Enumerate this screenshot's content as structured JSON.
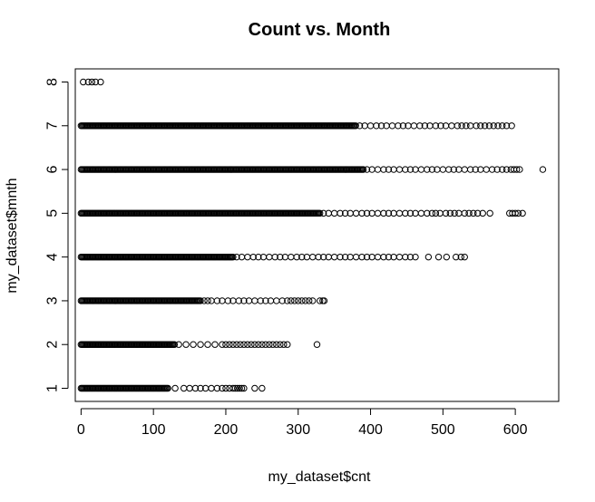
{
  "chart_data": {
    "type": "scatter",
    "title": "Count vs. Month",
    "xlabel": "my_dataset$cnt",
    "ylabel": "my_dataset$mnth",
    "xlim": [
      -8,
      660
    ],
    "ylim": [
      0.7,
      8.3
    ],
    "xticks": [
      "0",
      "100",
      "200",
      "300",
      "400",
      "500",
      "600"
    ],
    "xtick_values": [
      0,
      100,
      200,
      300,
      400,
      500,
      600
    ],
    "yticks": [
      "1",
      "2",
      "3",
      "4",
      "5",
      "6",
      "7",
      "8"
    ],
    "ytick_values": [
      1,
      2,
      3,
      4,
      5,
      6,
      7,
      8
    ],
    "marker": "open-circle",
    "color": "#000000",
    "rows": [
      {
        "month": 1,
        "dense_max": 120,
        "extra": [
          130,
          142,
          150,
          158,
          165,
          172,
          180,
          188,
          195,
          200,
          205,
          210,
          213,
          216,
          219,
          222,
          225,
          240,
          250
        ]
      },
      {
        "month": 2,
        "dense_max": 130,
        "extra": [
          135,
          145,
          155,
          165,
          175,
          185,
          195,
          200,
          205,
          210,
          215,
          220,
          225,
          230,
          235,
          240,
          245,
          250,
          255,
          260,
          265,
          270,
          275,
          280,
          285,
          326
        ]
      },
      {
        "month": 3,
        "dense_max": 165,
        "extra": [
          170,
          175,
          180,
          188,
          195,
          203,
          210,
          218,
          225,
          232,
          240,
          248,
          255,
          262,
          270,
          278,
          285,
          290,
          295,
          300,
          305,
          310,
          315,
          320,
          330,
          334,
          336
        ]
      },
      {
        "month": 4,
        "dense_max": 210,
        "extra": [
          215,
          222,
          230,
          238,
          245,
          252,
          260,
          268,
          275,
          282,
          290,
          298,
          305,
          312,
          320,
          328,
          335,
          342,
          350,
          358,
          365,
          372,
          380,
          388,
          395,
          402,
          410,
          418,
          425,
          432,
          440,
          448,
          455,
          462,
          480,
          494,
          505,
          518,
          525,
          530
        ]
      },
      {
        "month": 5,
        "dense_max": 330,
        "extra": [
          335,
          342,
          350,
          358,
          365,
          372,
          380,
          388,
          395,
          402,
          410,
          418,
          425,
          432,
          440,
          448,
          455,
          462,
          470,
          478,
          485,
          490,
          496,
          504,
          510,
          516,
          522,
          530,
          536,
          542,
          548,
          555,
          565,
          592,
          596,
          600,
          604,
          610
        ]
      },
      {
        "month": 6,
        "dense_max": 390,
        "extra": [
          395,
          402,
          410,
          418,
          425,
          432,
          440,
          448,
          455,
          462,
          470,
          478,
          485,
          492,
          500,
          508,
          515,
          522,
          530,
          538,
          545,
          552,
          560,
          568,
          575,
          582,
          588,
          594,
          598,
          602,
          606,
          638
        ]
      },
      {
        "month": 7,
        "dense_max": 380,
        "extra": [
          385,
          392,
          400,
          408,
          415,
          422,
          430,
          438,
          445,
          452,
          460,
          468,
          475,
          482,
          490,
          497,
          504,
          512,
          520,
          526,
          532,
          538,
          546,
          552,
          558,
          564,
          570,
          576,
          582,
          588,
          595
        ]
      },
      {
        "month": 8,
        "dense_max": 0,
        "extra": [
          3,
          10,
          15,
          20,
          27
        ]
      }
    ]
  }
}
